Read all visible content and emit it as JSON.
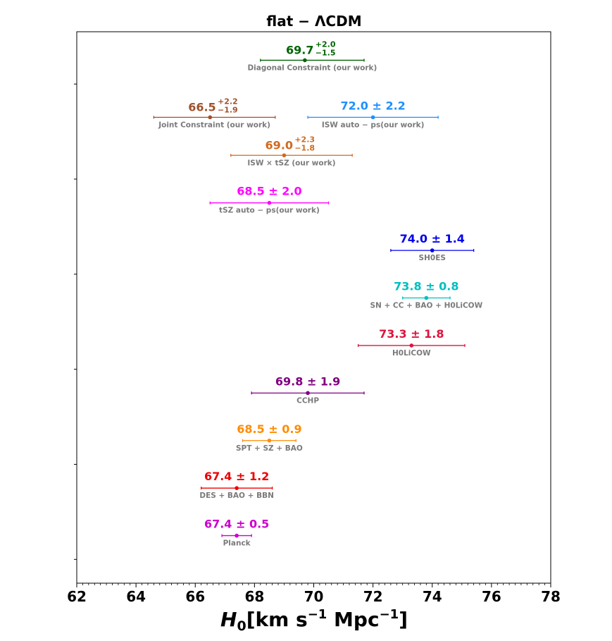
{
  "chart_data": {
    "type": "scatter",
    "title": "flat − ΛCDM",
    "xlabel": {
      "symbol": "H",
      "subscript": "0",
      "rest_before": "[km s",
      "exp1": "−1",
      "middle": " Mpc",
      "exp2": "−1",
      "rest_after": "]"
    },
    "xlim": [
      62,
      78
    ],
    "xticks": [
      "62",
      "64",
      "66",
      "68",
      "70",
      "72",
      "74",
      "76",
      "78"
    ],
    "xtick_values": [
      62,
      64,
      66,
      68,
      70,
      72,
      74,
      76,
      78
    ],
    "xminor_step": 0.2,
    "ylim": [
      0.5,
      12.1
    ],
    "yticks": [
      1,
      3,
      5,
      7,
      9,
      11
    ],
    "grid": false,
    "legend": "none",
    "points": [
      {
        "label": "Diagonal Constraint (our work)",
        "y": 11.5,
        "x": 69.7,
        "lo": 68.2,
        "hi": 71.7,
        "value_text": "69.7",
        "plus": "+2.0",
        "minus": "−1.5",
        "color": "#006400"
      },
      {
        "label": "Joint Constraint (our work)",
        "y": 10.3,
        "x": 66.5,
        "lo": 64.6,
        "hi": 68.7,
        "value_text": "66.5",
        "plus": "+2.2",
        "minus": "−1.9",
        "color": "#a0522d"
      },
      {
        "label": "ISW auto − ps(our work)",
        "y": 10.3,
        "x": 72.0,
        "lo": 69.8,
        "hi": 74.2,
        "value_text": "72.0 ± 2.2",
        "color": "#1e90ff"
      },
      {
        "label": "ISW × tSZ (our work)",
        "y": 9.5,
        "x": 69.0,
        "lo": 67.2,
        "hi": 71.3,
        "value_text": "69.0",
        "plus": "+2.3",
        "minus": "−1.8",
        "color": "#d2691e"
      },
      {
        "label": "tSZ auto − ps(our work)",
        "y": 8.5,
        "x": 68.5,
        "lo": 66.5,
        "hi": 70.5,
        "value_text": "68.5 ± 2.0",
        "color": "#ff00ff"
      },
      {
        "label": "SH0ES",
        "y": 7.5,
        "x": 74.0,
        "lo": 72.6,
        "hi": 75.4,
        "value_text": "74.0 ± 1.4",
        "color": "#0000ee"
      },
      {
        "label": "SN + CC + BAO + H0LiCOW",
        "y": 6.5,
        "x": 73.8,
        "lo": 73.0,
        "hi": 74.6,
        "value_text": "73.8 ± 0.8",
        "color": "#00bfbf"
      },
      {
        "label": "H0LiCOW",
        "y": 5.5,
        "x": 73.3,
        "lo": 71.5,
        "hi": 75.1,
        "value_text": "73.3 ± 1.8",
        "color": "#dc143c"
      },
      {
        "label": "CCHP",
        "y": 4.5,
        "x": 69.8,
        "lo": 67.9,
        "hi": 71.7,
        "value_text": "69.8 ± 1.9",
        "color": "#800080"
      },
      {
        "label": "SPT + SZ + BAO",
        "y": 3.5,
        "x": 68.5,
        "lo": 67.6,
        "hi": 69.4,
        "value_text": "68.5 ± 0.9",
        "color": "#ff8c00"
      },
      {
        "label": "DES + BAO + BBN",
        "y": 2.5,
        "x": 67.4,
        "lo": 66.2,
        "hi": 68.6,
        "value_text": "67.4 ± 1.2",
        "color": "#ee0000"
      },
      {
        "label": "Planck",
        "y": 1.5,
        "x": 67.4,
        "lo": 66.9,
        "hi": 67.9,
        "value_text": "67.4 ± 0.5",
        "color": "#cc00cc"
      }
    ]
  }
}
